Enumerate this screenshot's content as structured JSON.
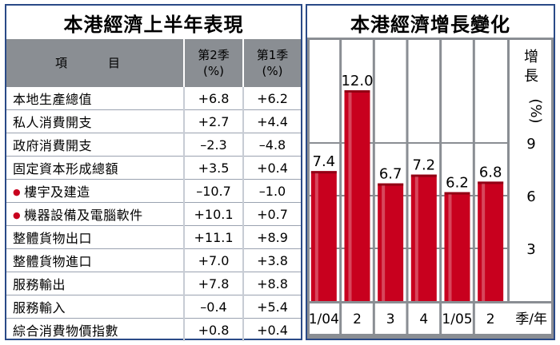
{
  "table": {
    "title": "本港經濟上半年表現",
    "headers": {
      "item": "項　目",
      "q2": "第2季\n(%)",
      "q1": "第1季\n(%)"
    },
    "rows": [
      {
        "name": "本地生產總值",
        "q2": "+6.8",
        "q1": "+6.2",
        "bullet": false
      },
      {
        "name": "私人消費開支",
        "q2": "+2.7",
        "q1": "+4.4",
        "bullet": false
      },
      {
        "name": "政府消費開支",
        "q2": "–2.3",
        "q1": "–4.8",
        "bullet": false
      },
      {
        "name": "固定資本形成總額",
        "q2": "+3.5",
        "q1": "+0.4",
        "bullet": false
      },
      {
        "name": "樓宇及建造",
        "q2": "–10.7",
        "q1": "–1.0",
        "bullet": true
      },
      {
        "name": "機器設備及電腦軟件",
        "q2": "+10.1",
        "q1": "+0.7",
        "bullet": true
      },
      {
        "name": "整體貨物出口",
        "q2": "+11.1",
        "q1": "+8.9",
        "bullet": false
      },
      {
        "name": "整體貨物進口",
        "q2": "+7.0",
        "q1": "+3.8",
        "bullet": false
      },
      {
        "name": "服務輸出",
        "q2": "+7.8",
        "q1": "+8.8",
        "bullet": false
      },
      {
        "name": "服務輸入",
        "q2": "–0.4",
        "q1": "+5.4",
        "bullet": false
      },
      {
        "name": "綜合消費物價指數",
        "q2": "+0.8",
        "q1": "+0.4",
        "bullet": false
      }
    ]
  },
  "colors": {
    "border": "#2a4a87",
    "plot_bg": "#8a8e93",
    "bar": "#c8001e",
    "bullet": "#c8001e"
  },
  "chart_data": {
    "type": "bar",
    "title": "本港經濟增長變化",
    "categories": [
      "1/04",
      "2",
      "3",
      "4",
      "1/05",
      "2"
    ],
    "xlabel": "季/年",
    "ylabel": "增長(%)",
    "values": [
      7.4,
      12.0,
      6.7,
      7.2,
      6.2,
      6.8
    ],
    "data_labels": [
      "7.4",
      "12.0",
      "6.7",
      "7.2",
      "6.2",
      "6.8"
    ],
    "yticks": [
      3,
      6,
      9
    ],
    "ylim": [
      0,
      15
    ],
    "grid": true
  }
}
